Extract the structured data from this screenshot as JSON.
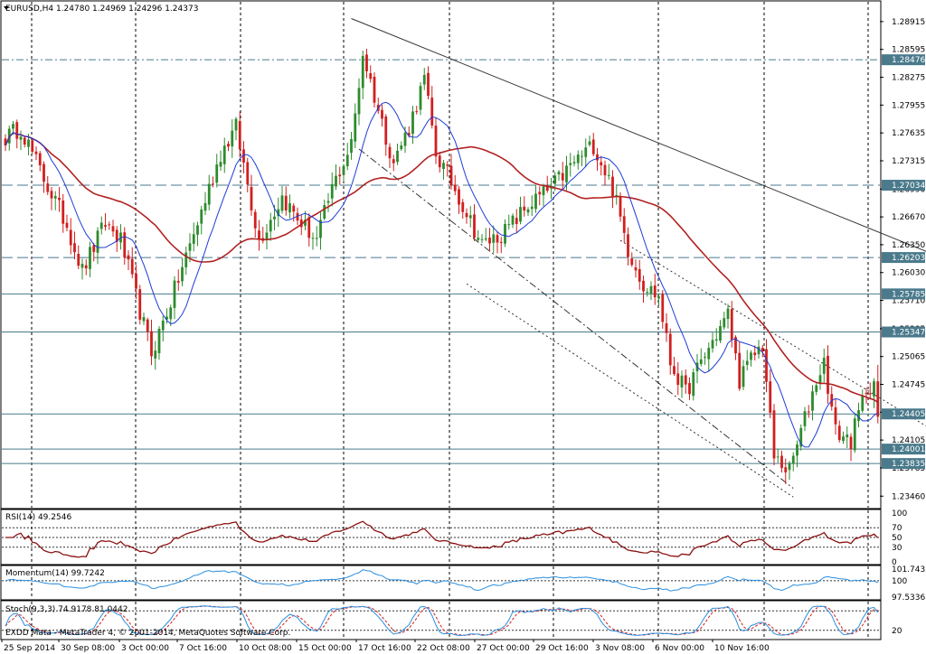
{
  "main_header": "EURUSD,H4  1.24780 1.24969 1.24296 1.24373",
  "copyright": "EXDD Mata - MetaTrader 4, © 2001-2014, MetaQuotes Software Corp.",
  "colors": {
    "bull": "#2e8b2e",
    "bear": "#d11f1f",
    "ma_fast": "#1e3cd6",
    "ma_slow": "#b22222",
    "rsi": "#8b1010",
    "momentum": "#2a8fe0",
    "stoch_main": "#2a8fe0",
    "stoch_signal": "#d11f1f",
    "hline": "#4a7a8c"
  },
  "chart_data": [
    {
      "type": "candlestick",
      "title": "EURUSD,H4",
      "ohlc_readout": {
        "open": 1.2478,
        "high": 1.24969,
        "low": 1.24296,
        "close": 1.24373
      },
      "y_ticks": [
        "1.28915",
        "1.28595",
        "1.28275",
        "1.27955",
        "1.27635",
        "1.27315",
        "1.26990",
        "1.26670",
        "1.26350",
        "1.26030",
        "1.25710",
        "1.25385",
        "1.25065",
        "1.24745",
        "1.24425",
        "1.24105",
        "1.23785",
        "1.23460"
      ],
      "ylim": [
        1.2339,
        1.2908
      ],
      "x_ticks": [
        "25 Sep 2014",
        "30 Sep 08:00",
        "3 Oct 00:00",
        "7 Oct 16:00",
        "10 Oct 08:00",
        "15 Oct 00:00",
        "17 Oct 16:00",
        "22 Oct 08:00",
        "27 Oct 00:00",
        "29 Oct 16:00",
        "3 Nov 08:00",
        "6 Nov 00:00",
        "10 Nov 16:00"
      ],
      "price_levels": [
        {
          "label": "1.28476",
          "value": 1.28476,
          "style": "dashdot"
        },
        {
          "label": "1.27034",
          "value": 1.27034,
          "style": "dashed"
        },
        {
          "label": "1.26203",
          "value": 1.26203,
          "style": "dashed"
        },
        {
          "label": "1.25785",
          "value": 1.25785,
          "style": "solid"
        },
        {
          "label": "1.25347",
          "value": 1.25347,
          "style": "solid"
        },
        {
          "label": "1.24405",
          "value": 1.24405,
          "style": "solid"
        },
        {
          "label": "1.24001",
          "value": 1.24001,
          "style": "solid"
        },
        {
          "label": "1.23835",
          "value": 1.23835,
          "style": "solid"
        }
      ],
      "anchors": [
        {
          "i": 0,
          "p": 1.2758
        },
        {
          "i": 4,
          "p": 1.277
        },
        {
          "i": 9,
          "p": 1.272
        },
        {
          "i": 16,
          "p": 1.2658
        },
        {
          "i": 20,
          "p": 1.2605
        },
        {
          "i": 26,
          "p": 1.266
        },
        {
          "i": 30,
          "p": 1.264
        },
        {
          "i": 38,
          "p": 1.251
        },
        {
          "i": 43,
          "p": 1.257
        },
        {
          "i": 50,
          "p": 1.266
        },
        {
          "i": 56,
          "p": 1.274
        },
        {
          "i": 60,
          "p": 1.277
        },
        {
          "i": 66,
          "p": 1.264
        },
        {
          "i": 72,
          "p": 1.269
        },
        {
          "i": 76,
          "p": 1.2665
        },
        {
          "i": 81,
          "p": 1.264
        },
        {
          "i": 85,
          "p": 1.27
        },
        {
          "i": 90,
          "p": 1.275
        },
        {
          "i": 93,
          "p": 1.2855
        },
        {
          "i": 97,
          "p": 1.279
        },
        {
          "i": 101,
          "p": 1.273
        },
        {
          "i": 105,
          "p": 1.277
        },
        {
          "i": 109,
          "p": 1.2825
        },
        {
          "i": 112,
          "p": 1.274
        },
        {
          "i": 118,
          "p": 1.269
        },
        {
          "i": 124,
          "p": 1.2635
        },
        {
          "i": 130,
          "p": 1.265
        },
        {
          "i": 136,
          "p": 1.268
        },
        {
          "i": 142,
          "p": 1.27
        },
        {
          "i": 148,
          "p": 1.273
        },
        {
          "i": 153,
          "p": 1.275
        },
        {
          "i": 158,
          "p": 1.27
        },
        {
          "i": 162,
          "p": 1.263
        },
        {
          "i": 166,
          "p": 1.259
        },
        {
          "i": 170,
          "p": 1.2575
        },
        {
          "i": 173,
          "p": 1.25
        },
        {
          "i": 177,
          "p": 1.2465
        },
        {
          "i": 181,
          "p": 1.25
        },
        {
          "i": 186,
          "p": 1.254
        },
        {
          "i": 188,
          "p": 1.2555
        },
        {
          "i": 191,
          "p": 1.248
        },
        {
          "i": 195,
          "p": 1.251
        },
        {
          "i": 197,
          "p": 1.252
        },
        {
          "i": 200,
          "p": 1.239
        },
        {
          "i": 204,
          "p": 1.2375
        },
        {
          "i": 207,
          "p": 1.242
        },
        {
          "i": 211,
          "p": 1.248
        },
        {
          "i": 213,
          "p": 1.25
        },
        {
          "i": 216,
          "p": 1.242
        },
        {
          "i": 220,
          "p": 1.241
        },
        {
          "i": 224,
          "p": 1.247
        },
        {
          "i": 226,
          "p": 1.2478
        },
        {
          "i": 227,
          "p": 1.2437
        }
      ],
      "ma_fast_period": 10,
      "ma_slow_period": 40,
      "trendlines": [
        {
          "from": {
            "i": 90,
            "p": 1.2895
          },
          "to": {
            "i": 280,
            "p": 1.2555
          },
          "style": "solid"
        },
        {
          "from": {
            "i": 92,
            "p": 1.2745
          },
          "to": {
            "i": 205,
            "p": 1.2355
          },
          "style": "dashdot"
        },
        {
          "from": {
            "i": 120,
            "p": 1.259
          },
          "to": {
            "i": 205,
            "p": 1.2345
          },
          "style": "dotted"
        },
        {
          "from": {
            "i": 160,
            "p": 1.264
          },
          "to": {
            "i": 270,
            "p": 1.2345
          },
          "style": "dotted"
        }
      ]
    },
    {
      "type": "line",
      "title": "RSI(14) 49.2546",
      "y_ticks": [
        "100",
        "70",
        "50",
        "30",
        "0"
      ],
      "levels": [
        70,
        50,
        30
      ],
      "ylim": [
        0,
        100
      ],
      "last_value": 49.2546
    },
    {
      "type": "line",
      "title": "Momentum(14) 99.7242",
      "y_ticks": [
        "101.7433",
        "100",
        "97.5336"
      ],
      "ylim": [
        97.5336,
        101.7433
      ],
      "last_value": 99.7242
    },
    {
      "type": "line",
      "title": "Stoch(9,3,3) 74.9178 81.0442",
      "y_ticks": [
        "20"
      ],
      "levels": [
        80,
        20
      ],
      "ylim": [
        0,
        100
      ],
      "main_last": 74.9178,
      "signal_last": 81.0442
    }
  ]
}
